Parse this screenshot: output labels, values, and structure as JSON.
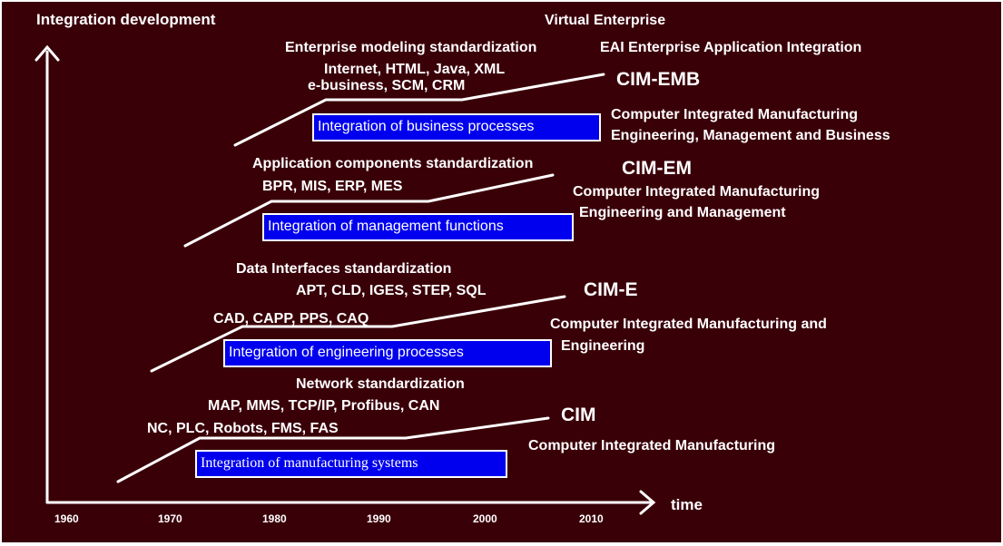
{
  "y_axis_label": "Integration development",
  "x_axis_label": "time",
  "ticks": [
    "1960",
    "1970",
    "1980",
    "1990",
    "2000",
    "2010"
  ],
  "top_title": "Virtual  Enterprise",
  "top_eai": "EAI Enterprise Application Integration",
  "levels": [
    {
      "name": "CIM",
      "standard": "Network standardization",
      "tech_lines": [
        "MAP, MMS, TCP/IP, Profibus, CAN",
        "NC, PLC, Robots, FMS, FAS"
      ],
      "box": "Integration of manufacturing systems",
      "description": [
        "Computer Integrated Manufacturing"
      ]
    },
    {
      "name": "CIM-E",
      "standard": "Data Interfaces standardization",
      "tech_lines": [
        "APT, CLD, IGES, STEP, SQL",
        "CAD, CAPP, PPS, CAQ"
      ],
      "box": "Integration of engineering processes",
      "description": [
        "Computer Integrated Manufacturing and",
        "Engineering"
      ]
    },
    {
      "name": "CIM-EM",
      "standard": "Application components standardization",
      "tech_lines": [
        "BPR, MIS,  ERP, MES"
      ],
      "box": "Integration of management functions",
      "description": [
        "Computer Integrated Manufacturing",
        "Engineering and Management"
      ]
    },
    {
      "name": "CIM-EMB",
      "standard": "Enterprise modeling standardization",
      "tech_lines": [
        "Internet, HTML, Java, XML",
        "e-business, SCM, CRM"
      ],
      "box": "Integration of business processes",
      "description": [
        "Computer Integrated Manufacturing",
        "Engineering, Management and Business"
      ]
    }
  ],
  "colors": {
    "background": "#3a0008",
    "box_fill": "#0000ee",
    "text": "#ffffff"
  }
}
